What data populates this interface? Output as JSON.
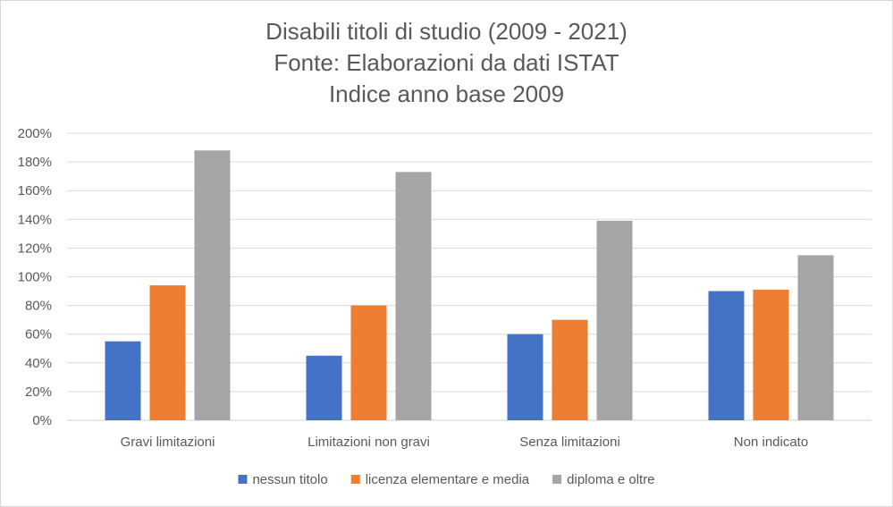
{
  "chart_data": {
    "type": "bar",
    "title_lines": [
      "Disabili titoli di studio (2009 - 2021)",
      "Fonte: Elaborazioni da dati ISTAT",
      "Indice anno base 2009"
    ],
    "categories": [
      "Gravi limitazioni",
      "Limitazioni non gravi",
      "Senza limitazioni",
      "Non indicato"
    ],
    "series": [
      {
        "name": "nessun titolo",
        "color": "#4472C4",
        "values": [
          55,
          45,
          60,
          90
        ]
      },
      {
        "name": "licenza elementare e media",
        "color": "#ED7D31",
        "values": [
          94,
          80,
          70,
          91
        ]
      },
      {
        "name": "diploma e oltre",
        "color": "#A5A5A5",
        "values": [
          188,
          173,
          139,
          115
        ]
      }
    ],
    "yticks": [
      "0%",
      "20%",
      "40%",
      "60%",
      "80%",
      "100%",
      "120%",
      "140%",
      "160%",
      "180%",
      "200%"
    ],
    "ylim": [
      0,
      200
    ],
    "grid": true,
    "legend_position": "bottom"
  }
}
